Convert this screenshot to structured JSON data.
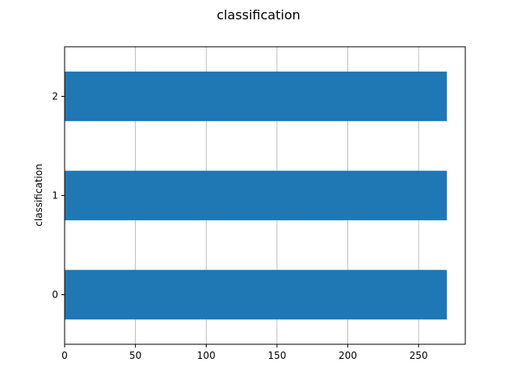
{
  "chart_data": {
    "type": "bar",
    "orientation": "horizontal",
    "title": "classification",
    "xlabel": "",
    "ylabel": "classification",
    "categories": [
      "0",
      "1",
      "2"
    ],
    "values": [
      270,
      270,
      270
    ],
    "xlim": [
      0,
      283
    ],
    "xticks": [
      0,
      50,
      100,
      150,
      200,
      250
    ],
    "grid": "x-only",
    "legend": "none",
    "bar_color": "#1f77b4",
    "grid_color": "#b0b0b0"
  }
}
